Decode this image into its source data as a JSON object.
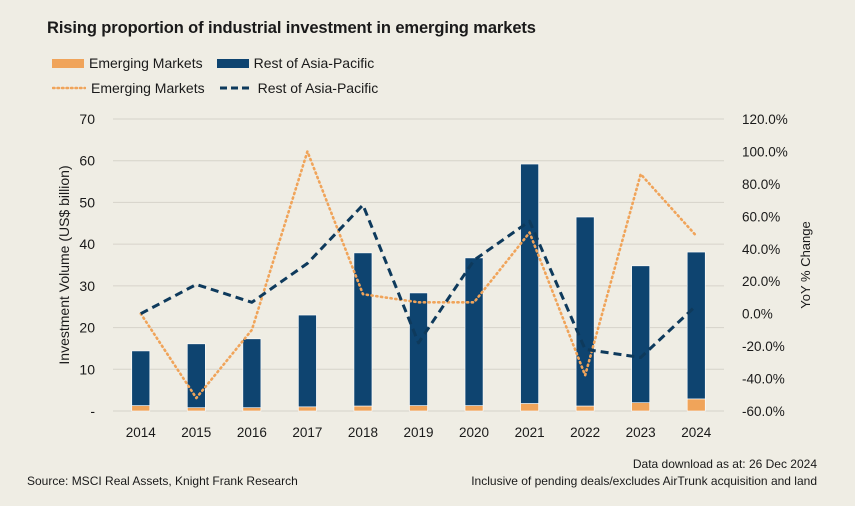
{
  "title": "Rising proportion of industrial investment in emerging markets",
  "legend": {
    "bar_items": [
      {
        "label": "Emerging Markets",
        "color": "#f0a45a"
      },
      {
        "label": "Rest of Asia-Pacific",
        "color": "#0e4470"
      }
    ],
    "line_items": [
      {
        "label": "Emerging Markets",
        "color": "#f0a45a",
        "style": "dotted"
      },
      {
        "label": "Rest of Asia-Pacific",
        "color": "#0e3a5c",
        "style": "dashed"
      }
    ]
  },
  "footer": {
    "source": "Source: MSCI Real Assets, Knight Frank Research",
    "download_date": "Data download as at: 26 Dec 2024",
    "note": "Inclusive of pending deals/excludes AirTrunk acquisition and land"
  },
  "chart_data": {
    "type": "bar",
    "title": "Rising proportion of industrial investment in emerging markets",
    "categories": [
      "2014",
      "2015",
      "2016",
      "2017",
      "2018",
      "2019",
      "2020",
      "2021",
      "2022",
      "2023",
      "2024"
    ],
    "stacked": true,
    "series": [
      {
        "name": "Emerging Markets",
        "kind": "bar",
        "axis": "left",
        "color": "#f0a45a",
        "values": [
          1.3,
          0.8,
          0.8,
          1.0,
          1.2,
          1.3,
          1.3,
          1.8,
          1.2,
          2.0,
          2.9
        ]
      },
      {
        "name": "Rest of Asia-Pacific",
        "kind": "bar",
        "axis": "left",
        "color": "#0e4470",
        "values": [
          13.1,
          15.3,
          16.5,
          22.0,
          36.7,
          27.0,
          35.4,
          57.4,
          45.3,
          32.8,
          35.2
        ]
      },
      {
        "name": "Emerging Markets",
        "kind": "line",
        "style": "dotted",
        "axis": "right",
        "color": "#f0a45a",
        "values": [
          0,
          -52,
          -10,
          100,
          12,
          7,
          7,
          50,
          -38,
          86,
          48
        ]
      },
      {
        "name": "Rest of Asia-Pacific",
        "kind": "line",
        "style": "dashed",
        "axis": "right",
        "color": "#0e3a5c",
        "values": [
          0,
          18,
          7,
          31,
          67,
          -18,
          33,
          57,
          -22,
          -27,
          5
        ]
      }
    ],
    "xlabel": "",
    "ylabel": "Investment Volume (US$ billion)",
    "ylim": [
      0,
      70
    ],
    "yticks": [
      0,
      10,
      20,
      30,
      40,
      50,
      60,
      70
    ],
    "ytick_labels": [
      "-",
      "10",
      "20",
      "30",
      "40",
      "50",
      "60",
      "70"
    ],
    "y2label": "YoY % Change",
    "y2lim": [
      -60,
      120
    ],
    "y2ticks": [
      -60,
      -40,
      -20,
      0,
      20,
      40,
      60,
      80,
      100,
      120
    ],
    "y2tick_labels": [
      "-60.0%",
      "-40.0%",
      "-20.0%",
      "0.0%",
      "20.0%",
      "40.0%",
      "60.0%",
      "80.0%",
      "100.0%",
      "120.0%"
    ],
    "grid": true,
    "legend_position": "top-left"
  }
}
